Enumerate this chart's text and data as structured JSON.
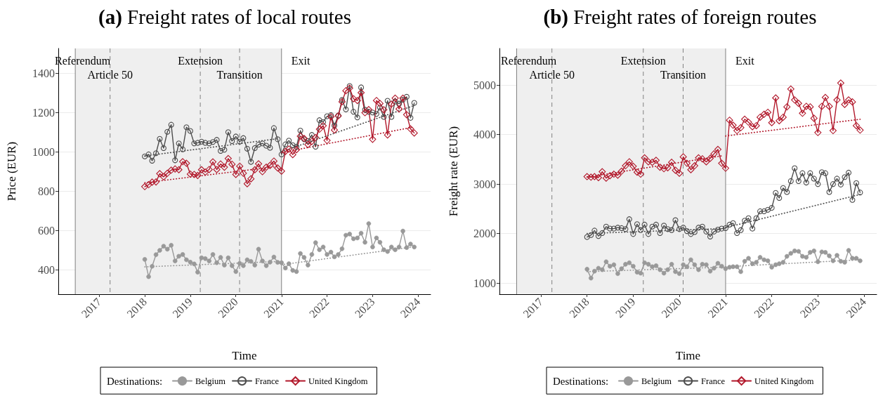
{
  "chart_data": [
    {
      "type": "line",
      "title": "(a) Freight rates of local routes",
      "xlabel": "Time",
      "ylabel": "Price (EUR)",
      "legend_title": "Destinations:",
      "x": [
        "2018-01",
        "2018-02",
        "2018-03",
        "2018-04",
        "2018-05",
        "2018-06",
        "2018-07",
        "2018-08",
        "2018-09",
        "2018-10",
        "2018-11",
        "2018-12",
        "2019-01",
        "2019-02",
        "2019-03",
        "2019-04",
        "2019-05",
        "2019-06",
        "2019-07",
        "2019-08",
        "2019-09",
        "2019-10",
        "2019-11",
        "2019-12",
        "2020-01",
        "2020-02",
        "2020-03",
        "2020-04",
        "2020-05",
        "2020-06",
        "2020-07",
        "2020-08",
        "2020-09",
        "2020-10",
        "2020-11",
        "2020-12",
        "2021-01",
        "2021-02",
        "2021-03",
        "2021-04",
        "2021-05",
        "2021-06",
        "2021-07",
        "2021-08",
        "2021-09",
        "2021-10",
        "2021-11",
        "2021-12",
        "2022-01",
        "2022-02",
        "2022-03",
        "2022-04",
        "2022-05",
        "2022-06",
        "2022-07",
        "2022-08",
        "2022-09",
        "2022-10",
        "2022-11",
        "2022-12",
        "2023-01",
        "2023-02",
        "2023-03",
        "2023-04",
        "2023-05",
        "2023-06",
        "2023-07",
        "2023-08",
        "2023-09",
        "2023-10",
        "2023-11",
        "2023-12"
      ],
      "series": [
        {
          "name": "Belgium",
          "color": "#999999",
          "marker": "circle",
          "values": [
            452,
            364,
            417,
            476,
            498,
            519,
            504,
            524,
            444,
            468,
            477,
            450,
            438,
            429,
            387,
            460,
            456,
            444,
            477,
            435,
            462,
            423,
            460,
            420,
            390,
            432,
            420,
            450,
            442,
            423,
            504,
            444,
            420,
            438,
            464,
            437,
            435,
            408,
            430,
            396,
            390,
            482,
            462,
            423,
            477,
            537,
            501,
            515,
            477,
            489,
            465,
            477,
            506,
            575,
            581,
            557,
            561,
            585,
            539,
            634,
            515,
            561,
            539,
            501,
            492,
            515,
            501,
            515,
            596,
            512,
            530,
            515
          ]
        },
        {
          "name": "France",
          "color": "#4d4d4d",
          "marker": "circle",
          "values": [
            976,
            986,
            954,
            992,
            1065,
            1018,
            1101,
            1137,
            956,
            1042,
            1012,
            1124,
            1105,
            1042,
            1045,
            1051,
            1045,
            1042,
            1049,
            1060,
            1004,
            1010,
            1099,
            1054,
            1077,
            1051,
            1069,
            1015,
            948,
            1018,
            1036,
            1042,
            1030,
            1020,
            1120,
            1063,
            986,
            1037,
            1056,
            1033,
            1025,
            1107,
            1063,
            1054,
            1085,
            1025,
            1160,
            1151,
            1180,
            1186,
            1133,
            1184,
            1263,
            1215,
            1334,
            1203,
            1174,
            1327,
            1213,
            1203,
            1199,
            1192,
            1224,
            1177,
            1259,
            1177,
            1255,
            1244,
            1264,
            1279,
            1172,
            1248
          ]
        },
        {
          "name": "United Kingdom",
          "color": "#b2182b",
          "marker": "diamond",
          "values": [
            822,
            832,
            845,
            846,
            888,
            872,
            890,
            906,
            912,
            908,
            949,
            941,
            886,
            884,
            879,
            908,
            896,
            909,
            948,
            909,
            937,
            921,
            965,
            936,
            884,
            926,
            890,
            837,
            862,
            908,
            938,
            898,
            921,
            930,
            952,
            917,
            901,
            1001,
            1013,
            985,
            1010,
            1079,
            1067,
            1036,
            1052,
            1072,
            1114,
            1132,
            1057,
            1178,
            1110,
            1182,
            1254,
            1310,
            1323,
            1269,
            1260,
            1300,
            1198,
            1214,
            1063,
            1260,
            1245,
            1213,
            1085,
            1242,
            1272,
            1217,
            1272,
            1188,
            1116,
            1095
          ]
        },
        {
          "color": "#999999",
          "marker": "none",
          "line_style": "dotted",
          "x": [
            "2018-01",
            "2020-12"
          ],
          "values": [
            414,
            441
          ]
        },
        {
          "color": "#999999",
          "marker": "none",
          "line_style": "dotted",
          "x": [
            "2021-01",
            "2023-12"
          ],
          "values": [
            425,
            516
          ]
        },
        {
          "color": "#4d4d4d",
          "marker": "none",
          "line_style": "dotted",
          "x": [
            "2018-01",
            "2020-12"
          ],
          "values": [
            978,
            1066
          ]
        },
        {
          "color": "#4d4d4d",
          "marker": "none",
          "line_style": "dotted",
          "x": [
            "2021-01",
            "2023-12"
          ],
          "values": [
            1000,
            1235
          ]
        },
        {
          "color": "#b2182b",
          "marker": "none",
          "line_style": "dotted",
          "x": [
            "2018-01",
            "2020-12"
          ],
          "values": [
            842,
            925
          ]
        },
        {
          "color": "#b2182b",
          "marker": "none",
          "line_style": "dotted",
          "x": [
            "2021-01",
            "2023-12"
          ],
          "values": [
            995,
            1126
          ]
        }
      ],
      "xlim": [
        "2016-02-08",
        "2024-04-10"
      ],
      "ylim": [
        275,
        1525
      ],
      "xticks": [
        "2017",
        "2018",
        "2019",
        "2020",
        "2021",
        "2022",
        "2023",
        "2024"
      ],
      "yticks": [
        400,
        600,
        800,
        1000,
        1200,
        1400
      ],
      "grid": "y",
      "legend": "bottom",
      "line_style": "solid",
      "ref_lines": [
        {
          "axis": "x",
          "value": "2016-06-23",
          "label": "Referendum",
          "line_style": "solid",
          "color": "#808080"
        },
        {
          "axis": "x",
          "value": "2017-03-29",
          "label": "Article 50",
          "line_style": "dashed",
          "color": "#808080"
        },
        {
          "axis": "x",
          "value": "2019-03-22",
          "label": "Extension",
          "line_style": "dashed",
          "color": "#808080"
        },
        {
          "axis": "x",
          "value": "2020-01-31",
          "label": "Transition",
          "line_style": "dashed",
          "color": "#808080"
        },
        {
          "axis": "x",
          "value": "2021-01-01",
          "label": "Exit",
          "line_style": "solid",
          "color": "#808080"
        }
      ],
      "bands": [
        {
          "axis": "x",
          "from": "2016-06-23",
          "to": "2021-01-01",
          "color": "#efefef"
        }
      ]
    },
    {
      "type": "line",
      "title": "(b) Freight rates of foreign routes",
      "xlabel": "Time",
      "ylabel": "Freight rate (EUR)",
      "legend_title": "Destinations:",
      "x": [
        "2018-01",
        "2018-02",
        "2018-03",
        "2018-04",
        "2018-05",
        "2018-06",
        "2018-07",
        "2018-08",
        "2018-09",
        "2018-10",
        "2018-11",
        "2018-12",
        "2019-01",
        "2019-02",
        "2019-03",
        "2019-04",
        "2019-05",
        "2019-06",
        "2019-07",
        "2019-08",
        "2019-09",
        "2019-10",
        "2019-11",
        "2019-12",
        "2020-01",
        "2020-02",
        "2020-03",
        "2020-04",
        "2020-05",
        "2020-06",
        "2020-07",
        "2020-08",
        "2020-09",
        "2020-10",
        "2020-11",
        "2020-12",
        "2021-01",
        "2021-02",
        "2021-03",
        "2021-04",
        "2021-05",
        "2021-06",
        "2021-07",
        "2021-08",
        "2021-09",
        "2021-10",
        "2021-11",
        "2021-12",
        "2022-01",
        "2022-02",
        "2022-03",
        "2022-04",
        "2022-05",
        "2022-06",
        "2022-07",
        "2022-08",
        "2022-09",
        "2022-10",
        "2022-11",
        "2022-12",
        "2023-01",
        "2023-02",
        "2023-03",
        "2023-04",
        "2023-05",
        "2023-06",
        "2023-07",
        "2023-08",
        "2023-09",
        "2023-10",
        "2023-11",
        "2023-12"
      ],
      "series": [
        {
          "name": "Belgium",
          "color": "#999999",
          "marker": "circle",
          "values": [
            1280,
            1100,
            1240,
            1300,
            1270,
            1430,
            1340,
            1370,
            1190,
            1290,
            1380,
            1410,
            1340,
            1220,
            1200,
            1410,
            1380,
            1330,
            1350,
            1270,
            1200,
            1270,
            1380,
            1230,
            1190,
            1370,
            1330,
            1470,
            1370,
            1270,
            1380,
            1370,
            1240,
            1300,
            1400,
            1340,
            1290,
            1320,
            1330,
            1330,
            1230,
            1440,
            1500,
            1390,
            1420,
            1520,
            1470,
            1450,
            1320,
            1370,
            1390,
            1420,
            1540,
            1600,
            1650,
            1640,
            1540,
            1520,
            1620,
            1650,
            1430,
            1630,
            1620,
            1550,
            1450,
            1560,
            1440,
            1420,
            1660,
            1500,
            1500,
            1450
          ]
        },
        {
          "name": "France",
          "color": "#4d4d4d",
          "marker": "circle",
          "values": [
            1930,
            1970,
            2060,
            1950,
            2010,
            2140,
            2100,
            2100,
            2120,
            2110,
            2090,
            2290,
            1990,
            2190,
            2070,
            2180,
            1990,
            2140,
            2180,
            2010,
            2160,
            2090,
            2070,
            2270,
            2090,
            2120,
            2050,
            1990,
            2030,
            2120,
            2140,
            2040,
            1940,
            2040,
            2080,
            2100,
            2110,
            2180,
            2210,
            2010,
            2070,
            2260,
            2310,
            2100,
            2310,
            2450,
            2450,
            2480,
            2520,
            2820,
            2720,
            2920,
            2840,
            3060,
            3320,
            3060,
            3220,
            3030,
            3220,
            3110,
            3000,
            3240,
            3220,
            2840,
            3000,
            3110,
            2990,
            3140,
            3230,
            2680,
            3020,
            2830
          ]
        },
        {
          "name": "United Kingdom",
          "color": "#b2182b",
          "marker": "diamond",
          "values": [
            3150,
            3140,
            3150,
            3130,
            3250,
            3120,
            3170,
            3200,
            3180,
            3260,
            3370,
            3450,
            3360,
            3240,
            3200,
            3530,
            3450,
            3440,
            3480,
            3340,
            3310,
            3330,
            3440,
            3280,
            3220,
            3550,
            3420,
            3290,
            3370,
            3530,
            3510,
            3450,
            3520,
            3610,
            3700,
            3420,
            3320,
            4290,
            4190,
            4080,
            4140,
            4310,
            4250,
            4160,
            4180,
            4350,
            4410,
            4450,
            4240,
            4740,
            4280,
            4350,
            4560,
            4920,
            4700,
            4630,
            4430,
            4570,
            4560,
            4330,
            4040,
            4570,
            4750,
            4570,
            4080,
            4700,
            5040,
            4610,
            4700,
            4660,
            4180,
            4090
          ]
        },
        {
          "color": "#999999",
          "marker": "none",
          "line_style": "dotted",
          "x": [
            "2018-01",
            "2020-12"
          ],
          "values": [
            1230,
            1320
          ]
        },
        {
          "color": "#999999",
          "marker": "none",
          "line_style": "dotted",
          "x": [
            "2021-01",
            "2023-12"
          ],
          "values": [
            1330,
            1470
          ]
        },
        {
          "color": "#4d4d4d",
          "marker": "none",
          "line_style": "dotted",
          "x": [
            "2018-01",
            "2020-12"
          ],
          "values": [
            2000,
            2100
          ]
        },
        {
          "color": "#4d4d4d",
          "marker": "none",
          "line_style": "dotted",
          "x": [
            "2021-01",
            "2023-12"
          ],
          "values": [
            2120,
            2790
          ]
        },
        {
          "color": "#b2182b",
          "marker": "none",
          "line_style": "dotted",
          "x": [
            "2018-01",
            "2020-12"
          ],
          "values": [
            3140,
            3570
          ]
        },
        {
          "color": "#b2182b",
          "marker": "none",
          "line_style": "dotted",
          "x": [
            "2021-01",
            "2023-12"
          ],
          "values": [
            3970,
            4310
          ]
        }
      ],
      "xlim": [
        "2016-02-08",
        "2024-04-10"
      ],
      "ylim": [
        775,
        5740
      ],
      "xticks": [
        "2017",
        "2018",
        "2019",
        "2020",
        "2021",
        "2022",
        "2023",
        "2024"
      ],
      "yticks": [
        1000,
        2000,
        3000,
        4000,
        5000
      ],
      "grid": "y",
      "legend": "bottom",
      "line_style": "solid",
      "ref_lines": [
        {
          "axis": "x",
          "value": "2016-06-23",
          "label": "Referendum",
          "line_style": "solid",
          "color": "#808080"
        },
        {
          "axis": "x",
          "value": "2017-03-29",
          "label": "Article 50",
          "line_style": "dashed",
          "color": "#808080"
        },
        {
          "axis": "x",
          "value": "2019-03-22",
          "label": "Extension",
          "line_style": "dashed",
          "color": "#808080"
        },
        {
          "axis": "x",
          "value": "2020-01-31",
          "label": "Transition",
          "line_style": "dashed",
          "color": "#808080"
        },
        {
          "axis": "x",
          "value": "2021-01-01",
          "label": "Exit",
          "line_style": "solid",
          "color": "#808080"
        }
      ],
      "bands": [
        {
          "axis": "x",
          "from": "2016-06-23",
          "to": "2021-01-01",
          "color": "#efefef"
        }
      ]
    }
  ]
}
